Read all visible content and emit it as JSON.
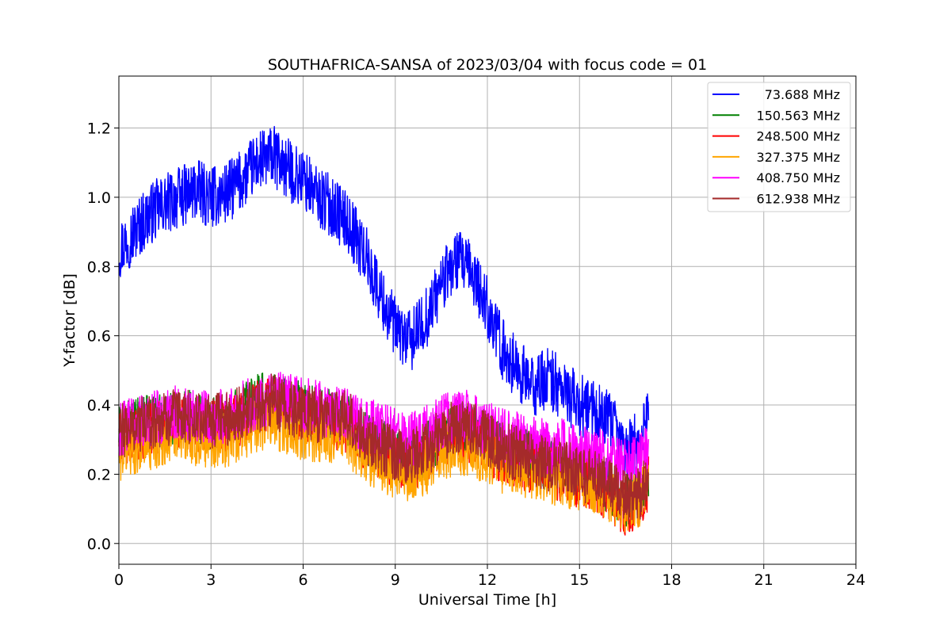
{
  "chart_data": {
    "type": "line",
    "title": "SOUTHAFRICA-SANSA of 2023/03/04 with focus code = 01",
    "xlabel": "Universal Time [h]",
    "ylabel": "Y-factor [dB]",
    "xlim": [
      0,
      24
    ],
    "ylim": [
      -0.06,
      1.35
    ],
    "x_ticks": [
      0,
      3,
      6,
      9,
      12,
      15,
      18,
      21,
      24
    ],
    "x_tick_labels": [
      "0",
      "3",
      "6",
      "9",
      "12",
      "15",
      "18",
      "21",
      "24"
    ],
    "y_ticks": [
      0.0,
      0.2,
      0.4,
      0.6,
      0.8,
      1.0,
      1.2
    ],
    "y_tick_labels": [
      "0.0",
      "0.2",
      "0.4",
      "0.6",
      "0.8",
      "1.0",
      "1.2"
    ],
    "grid": true,
    "legend_position": "top-right",
    "series": [
      {
        "name": "73.688 MHz",
        "color": "#0000ff",
        "x": [
          0,
          0.5,
          1,
          1.5,
          2,
          2.5,
          3,
          3.5,
          4,
          4.5,
          5,
          5.5,
          6,
          6.5,
          7,
          7.5,
          8,
          8.5,
          9,
          9.5,
          10,
          10.5,
          11,
          11.5,
          12,
          12.5,
          13,
          13.5,
          14,
          14.5,
          15,
          15.5,
          16,
          16.5,
          17,
          17.25
        ],
        "y": [
          0.85,
          0.9,
          0.95,
          0.98,
          1.0,
          1.02,
          1.0,
          1.01,
          1.05,
          1.1,
          1.12,
          1.08,
          1.05,
          1.0,
          0.97,
          0.92,
          0.84,
          0.72,
          0.62,
          0.58,
          0.65,
          0.75,
          0.82,
          0.78,
          0.68,
          0.56,
          0.5,
          0.45,
          0.48,
          0.44,
          0.4,
          0.38,
          0.35,
          0.27,
          0.3,
          0.4
        ],
        "noise": 0.09
      },
      {
        "name": "150.563 MHz",
        "color": "#008000",
        "x": [
          0,
          0.5,
          1,
          1.5,
          2,
          2.5,
          3,
          3.5,
          4,
          4.5,
          5,
          5.5,
          6,
          6.5,
          7,
          7.5,
          8,
          8.5,
          9,
          9.5,
          10,
          10.5,
          11,
          11.5,
          12,
          12.5,
          13,
          13.5,
          14,
          14.5,
          15,
          15.5,
          16,
          16.5,
          17,
          17.25
        ],
        "y": [
          0.32,
          0.34,
          0.35,
          0.36,
          0.37,
          0.36,
          0.35,
          0.36,
          0.38,
          0.41,
          0.42,
          0.4,
          0.39,
          0.38,
          0.37,
          0.36,
          0.3,
          0.28,
          0.26,
          0.25,
          0.27,
          0.31,
          0.34,
          0.33,
          0.3,
          0.27,
          0.26,
          0.24,
          0.23,
          0.22,
          0.2,
          0.19,
          0.16,
          0.12,
          0.15,
          0.2
        ],
        "noise": 0.08
      },
      {
        "name": "248.500 MHz",
        "color": "#ff0000",
        "x": [
          0,
          0.5,
          1,
          1.5,
          2,
          2.5,
          3,
          3.5,
          4,
          4.5,
          5,
          5.5,
          6,
          6.5,
          7,
          7.5,
          8,
          8.5,
          9,
          9.5,
          10,
          10.5,
          11,
          11.5,
          12,
          12.5,
          13,
          13.5,
          14,
          14.5,
          15,
          15.5,
          16,
          16.5,
          17,
          17.25
        ],
        "y": [
          0.3,
          0.32,
          0.33,
          0.34,
          0.35,
          0.34,
          0.33,
          0.34,
          0.36,
          0.39,
          0.4,
          0.38,
          0.37,
          0.36,
          0.35,
          0.34,
          0.28,
          0.26,
          0.24,
          0.23,
          0.25,
          0.29,
          0.32,
          0.31,
          0.28,
          0.25,
          0.24,
          0.22,
          0.21,
          0.2,
          0.18,
          0.17,
          0.14,
          0.1,
          0.13,
          0.18
        ],
        "noise": 0.08
      },
      {
        "name": "327.375 MHz",
        "color": "#ffa500",
        "x": [
          0,
          0.5,
          1,
          1.5,
          2,
          2.5,
          3,
          3.5,
          4,
          4.5,
          5,
          5.5,
          6,
          6.5,
          7,
          7.5,
          8,
          8.5,
          9,
          9.5,
          10,
          10.5,
          11,
          11.5,
          12,
          12.5,
          13,
          13.5,
          14,
          14.5,
          15,
          15.5,
          16,
          16.5,
          17,
          17.25
        ],
        "y": [
          0.26,
          0.28,
          0.29,
          0.3,
          0.31,
          0.3,
          0.29,
          0.3,
          0.32,
          0.34,
          0.35,
          0.33,
          0.32,
          0.31,
          0.31,
          0.3,
          0.25,
          0.23,
          0.21,
          0.2,
          0.22,
          0.26,
          0.28,
          0.27,
          0.25,
          0.22,
          0.21,
          0.2,
          0.19,
          0.18,
          0.17,
          0.16,
          0.14,
          0.11,
          0.13,
          0.18
        ],
        "noise": 0.08
      },
      {
        "name": "408.750 MHz",
        "color": "#ff00ff",
        "x": [
          0,
          0.5,
          1,
          1.5,
          2,
          2.5,
          3,
          3.5,
          4,
          4.5,
          5,
          5.5,
          6,
          6.5,
          7,
          7.5,
          8,
          8.5,
          9,
          9.5,
          10,
          10.5,
          11,
          11.5,
          12,
          12.5,
          13,
          13.5,
          14,
          14.5,
          15,
          15.5,
          16,
          16.5,
          17,
          17.25
        ],
        "y": [
          0.33,
          0.35,
          0.36,
          0.37,
          0.38,
          0.37,
          0.36,
          0.37,
          0.39,
          0.41,
          0.42,
          0.41,
          0.4,
          0.39,
          0.38,
          0.37,
          0.34,
          0.33,
          0.31,
          0.3,
          0.32,
          0.35,
          0.37,
          0.36,
          0.33,
          0.31,
          0.3,
          0.29,
          0.28,
          0.28,
          0.27,
          0.26,
          0.24,
          0.22,
          0.24,
          0.28
        ],
        "noise": 0.08
      },
      {
        "name": "612.938 MHz",
        "color": "#a52a2a",
        "x": [
          0,
          0.5,
          1,
          1.5,
          2,
          2.5,
          3,
          3.5,
          4,
          4.5,
          5,
          5.5,
          6,
          6.5,
          7,
          7.5,
          8,
          8.5,
          9,
          9.5,
          10,
          10.5,
          11,
          11.5,
          12,
          12.5,
          13,
          13.5,
          14,
          14.5,
          15,
          15.5,
          16,
          16.5,
          17,
          17.25
        ],
        "y": [
          0.32,
          0.34,
          0.35,
          0.36,
          0.37,
          0.36,
          0.35,
          0.36,
          0.38,
          0.4,
          0.41,
          0.39,
          0.38,
          0.37,
          0.37,
          0.36,
          0.3,
          0.28,
          0.26,
          0.25,
          0.27,
          0.31,
          0.34,
          0.33,
          0.3,
          0.27,
          0.26,
          0.24,
          0.23,
          0.22,
          0.2,
          0.19,
          0.16,
          0.13,
          0.15,
          0.2
        ],
        "noise": 0.08
      }
    ]
  }
}
